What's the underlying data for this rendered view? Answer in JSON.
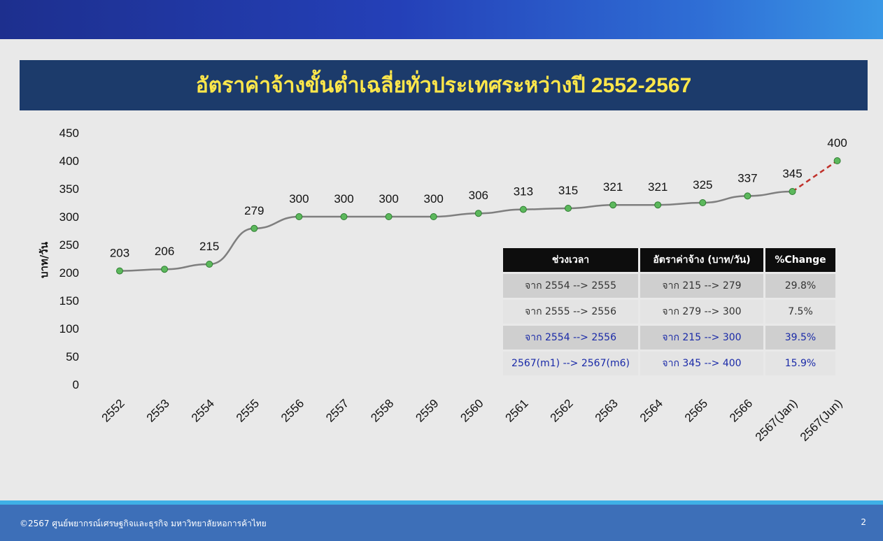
{
  "title": "อัตราค่าจ้างขั้นต่ำเฉลี่ยทั่วประเทศระหว่างปี 2552-2567",
  "chart_data": {
    "type": "line",
    "categories": [
      "2552",
      "2553",
      "2554",
      "2555",
      "2556",
      "2557",
      "2558",
      "2559",
      "2560",
      "2561",
      "2562",
      "2563",
      "2564",
      "2565",
      "2566",
      "2567(Jan)",
      "2567(Jun)"
    ],
    "values": [
      203,
      206,
      215,
      279,
      300,
      300,
      300,
      300,
      306,
      313,
      315,
      321,
      321,
      325,
      337,
      345,
      400
    ],
    "data_labels": [
      "203",
      "206",
      "215",
      "279",
      "300",
      "300",
      "300",
      "300",
      "306",
      "313",
      "315",
      "321",
      "321",
      "325",
      "337",
      "345",
      "400"
    ],
    "ylabel": "บาท/วัน",
    "ylim": [
      0,
      450
    ],
    "yticks": [
      "0",
      "50",
      "100",
      "150",
      "200",
      "250",
      "300",
      "350",
      "400",
      "450"
    ],
    "grid": false,
    "line_color": "#7f7f7f",
    "marker_color": "#5cb85c",
    "last_segment_style": "dashed",
    "last_segment_color": "#c0302a"
  },
  "table": {
    "headers": [
      "ช่วงเวลา",
      "อัตราค่าจ้าง (บาท/วัน)",
      "%Change"
    ],
    "rows": [
      {
        "period": "จาก 2554 --> 2555",
        "rate": "จาก 215 --> 279",
        "change": "29.8%"
      },
      {
        "period": "จาก 2555 --> 2556",
        "rate": "จาก 279 --> 300",
        "change": "7.5%"
      },
      {
        "period": "จาก 2554 --> 2556",
        "rate": "จาก 215 --> 300",
        "change": "39.5%"
      },
      {
        "period": "2567(m1) --> 2567(m6)",
        "rate": "จาก 345 --> 400",
        "change": "15.9%"
      }
    ]
  },
  "footer": {
    "copyright": "©2567 ศูนย์พยากรณ์เศรษฐกิจและธุรกิจ มหาวิทยาลัยหอการค้าไทย",
    "page": "2"
  },
  "colors": {
    "title_bg": "#1c3b6b",
    "title_text": "#ffe74a",
    "highlight_text": "#1a2aa8"
  }
}
